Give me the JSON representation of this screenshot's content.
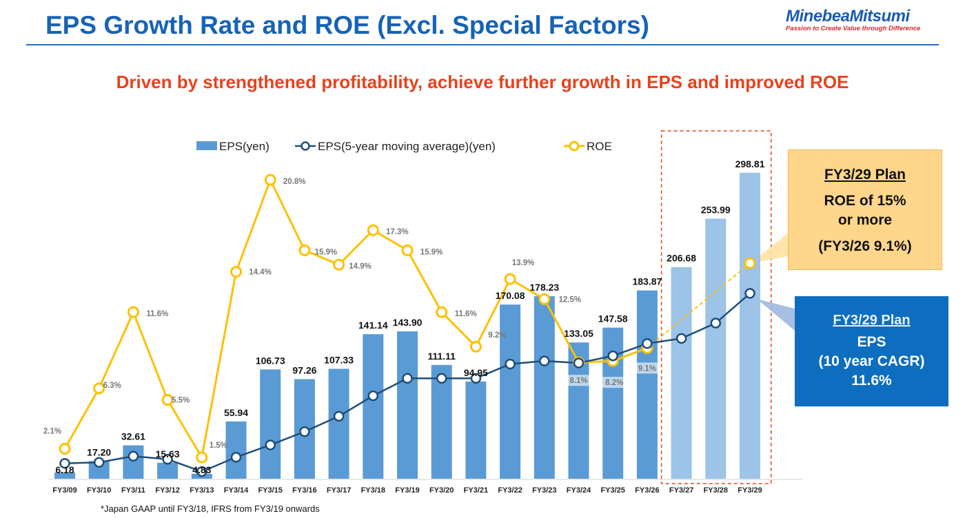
{
  "header": {
    "title": "EPS Growth Rate and ROE (Excl. Special Factors)",
    "logo_name": "MinebeaMitsumi",
    "logo_tagline": "Passion to Create Value through Difference"
  },
  "subtitle": "Driven by strengthened profitability, achieve further growth in EPS and improved ROE",
  "legend": {
    "eps": "EPS(yen)",
    "eps_ma": "EPS(5-year moving average)(yen)",
    "roe": "ROE"
  },
  "callouts": {
    "roe_plan": {
      "heading": "FY3/29 Plan",
      "line1": "ROE of 15%",
      "line2": "or more",
      "line3": "(FY3/26 9.1%)"
    },
    "eps_plan": {
      "heading": "FY3/29 Plan",
      "line1": "EPS",
      "line2": "(10 year CAGR)",
      "line3": "11.6%"
    }
  },
  "footnote": "*Japan GAAP until FY3/18, IFRS from FY3/19 onwards",
  "colors": {
    "bar_actual": "#5b9bd5",
    "bar_plan": "#9dc3e6",
    "eps_ma_line": "#1f4e79",
    "roe_line": "#ffc000",
    "title": "#1763b6",
    "subtitle": "#e8421c",
    "plan_box_border": "#e8421c"
  },
  "chart_data": {
    "type": "bar",
    "categories": [
      "FY3/09",
      "FY3/10",
      "FY3/11",
      "FY3/12",
      "FY3/13",
      "FY3/14",
      "FY3/15",
      "FY3/16",
      "FY3/17",
      "FY3/18",
      "FY3/19",
      "FY3/20",
      "FY3/21",
      "FY3/22",
      "FY3/23",
      "FY3/24",
      "FY3/25",
      "FY3/26",
      "FY3/27",
      "FY3/28",
      "FY3/29"
    ],
    "series": [
      {
        "name": "EPS(yen)",
        "type": "bar",
        "values": [
          6.18,
          17.2,
          32.61,
          15.63,
          4.83,
          55.94,
          106.73,
          97.26,
          107.33,
          141.14,
          143.9,
          111.11,
          94.95,
          170.08,
          178.23,
          133.05,
          147.58,
          183.87,
          206.68,
          253.99,
          298.81
        ],
        "labels": [
          "6.18",
          "17.20",
          "32.61",
          "15.63",
          "4.83",
          "55.94",
          "106.73",
          "97.26",
          "107.33",
          "141.14",
          "143.90",
          "111.11",
          "94.95",
          "170.08",
          "178.23",
          "133.05",
          "147.58",
          "183.87",
          "206.68",
          "253.99",
          "298.81"
        ]
      },
      {
        "name": "EPS(5-year moving average)(yen)",
        "type": "line",
        "values": [
          15,
          16,
          22,
          19,
          7,
          21,
          33,
          46,
          61,
          81,
          98,
          98,
          98,
          112,
          115,
          113,
          120,
          132,
          137,
          152,
          181
        ]
      },
      {
        "name": "ROE",
        "type": "line",
        "values": [
          2.1,
          6.3,
          11.6,
          5.5,
          1.5,
          14.4,
          20.8,
          15.9,
          14.9,
          17.3,
          15.9,
          11.6,
          9.2,
          13.9,
          12.5,
          8.1,
          8.2,
          9.1,
          null,
          null,
          15.0
        ],
        "labels": [
          "2.1%",
          "6.3%",
          "11.6%",
          "5.5%",
          "1.5%",
          "14.4%",
          "20.8%",
          "15.9%",
          "14.9%",
          "17.3%",
          "15.9%",
          "11.6%",
          "9.2%",
          "13.9%",
          "12.5%",
          "8.1%",
          "8.2%",
          "9.1%",
          "",
          "",
          ""
        ]
      }
    ],
    "plan_categories": [
      "FY3/27",
      "FY3/28",
      "FY3/29"
    ],
    "legend_position": "top",
    "grid": false
  }
}
